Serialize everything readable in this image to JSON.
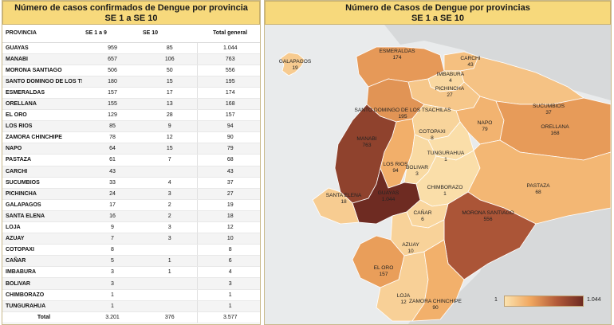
{
  "left_title": [
    "Número de casos confirmados de Dengue por provincia",
    "SE 1 a SE 10"
  ],
  "right_title": [
    "Número de Casos de Dengue por provincias",
    "SE 1 a SE 10"
  ],
  "table": {
    "headers": [
      "PROVINCIA",
      "SE 1 a 9",
      "SE 10",
      "Total general"
    ],
    "rows": [
      [
        "GUAYAS",
        "959",
        "85",
        "1.044"
      ],
      [
        "MANABI",
        "657",
        "106",
        "763"
      ],
      [
        "MORONA SANTIAGO",
        "506",
        "50",
        "556"
      ],
      [
        "SANTO DOMINGO DE LOS TS..",
        "180",
        "15",
        "195"
      ],
      [
        "ESMERALDAS",
        "157",
        "17",
        "174"
      ],
      [
        "ORELLANA",
        "155",
        "13",
        "168"
      ],
      [
        "EL ORO",
        "129",
        "28",
        "157"
      ],
      [
        "LOS RIOS",
        "85",
        "9",
        "94"
      ],
      [
        "ZAMORA CHINCHIPE",
        "78",
        "12",
        "90"
      ],
      [
        "NAPO",
        "64",
        "15",
        "79"
      ],
      [
        "PASTAZA",
        "61",
        "7",
        "68"
      ],
      [
        "CARCHI",
        "43",
        "",
        "43"
      ],
      [
        "SUCUMBIOS",
        "33",
        "4",
        "37"
      ],
      [
        "PICHINCHA",
        "24",
        "3",
        "27"
      ],
      [
        "GALAPAGOS",
        "17",
        "2",
        "19"
      ],
      [
        "SANTA ELENA",
        "16",
        "2",
        "18"
      ],
      [
        "LOJA",
        "9",
        "3",
        "12"
      ],
      [
        "AZUAY",
        "7",
        "3",
        "10"
      ],
      [
        "COTOPAXI",
        "8",
        "",
        "8"
      ],
      [
        " CAÑAR",
        "5",
        "1",
        "6"
      ],
      [
        "IMBABURA",
        "3",
        "1",
        "4"
      ],
      [
        "BOLIVAR",
        "3",
        "",
        "3"
      ],
      [
        "CHIMBORAZO",
        "1",
        "",
        "1"
      ],
      [
        "TUNGURAHUA",
        "1",
        "",
        "1"
      ]
    ],
    "total_row": [
      "Total",
      "3.201",
      "376",
      "3.577"
    ]
  },
  "chart_data": {
    "type": "table",
    "categories": [
      "GUAYAS",
      "MANABI",
      "MORONA SANTIAGO",
      "SANTO DOMINGO DE LOS TS..",
      "ESMERALDAS",
      "ORELLANA",
      "EL ORO",
      "LOS RIOS",
      "ZAMORA CHINCHIPE",
      "NAPO",
      "PASTAZA",
      "CARCHI",
      "SUCUMBIOS",
      "PICHINCHA",
      "GALAPAGOS",
      "SANTA ELENA",
      "LOJA",
      "AZUAY",
      "COTOPAXI",
      " CAÑAR",
      "IMBABURA",
      "BOLIVAR",
      "CHIMBORAZO",
      "TUNGURAHUA"
    ],
    "series": [
      {
        "name": "SE 1 a 9",
        "values": [
          959,
          657,
          506,
          180,
          157,
          155,
          129,
          85,
          78,
          64,
          61,
          43,
          33,
          24,
          17,
          16,
          9,
          7,
          8,
          5,
          3,
          3,
          1,
          1
        ]
      },
      {
        "name": "SE 10",
        "values": [
          85,
          106,
          50,
          15,
          17,
          13,
          28,
          9,
          12,
          15,
          7,
          null,
          4,
          3,
          2,
          2,
          3,
          3,
          null,
          1,
          1,
          null,
          null,
          null
        ]
      },
      {
        "name": "Total general",
        "values": [
          1044,
          763,
          556,
          195,
          174,
          168,
          157,
          94,
          90,
          79,
          68,
          43,
          37,
          27,
          19,
          18,
          12,
          10,
          8,
          6,
          4,
          3,
          1,
          1
        ]
      }
    ]
  },
  "map": {
    "provinces": [
      {
        "name": "GALAPAGOS",
        "value": "19",
        "total": 19
      },
      {
        "name": "ESMERALDAS",
        "value": "174",
        "total": 174
      },
      {
        "name": "CARCHI",
        "value": "43",
        "total": 43
      },
      {
        "name": "IMBABURA",
        "value": "4",
        "total": 4
      },
      {
        "name": "SUCUMBIOS",
        "value": "37",
        "total": 37
      },
      {
        "name": "PICHINCHA",
        "value": "27",
        "total": 27
      },
      {
        "name": "SANTO DOMINGO DE LOS TSACHILAS",
        "value": "195",
        "total": 195
      },
      {
        "name": "NAPO",
        "value": "79",
        "total": 79
      },
      {
        "name": "ORELLANA",
        "value": "168",
        "total": 168
      },
      {
        "name": "MANABI",
        "value": "763",
        "total": 763
      },
      {
        "name": "COTOPAXI",
        "value": "8",
        "total": 8
      },
      {
        "name": "TUNGURAHUA",
        "value": "1",
        "total": 1
      },
      {
        "name": "LOS RIOS",
        "value": "94",
        "total": 94
      },
      {
        "name": "BOLIVAR",
        "value": "3",
        "total": 3
      },
      {
        "name": "CHIMBORAZO",
        "value": "1",
        "total": 1
      },
      {
        "name": "PASTAZA",
        "value": "68",
        "total": 68
      },
      {
        "name": "GUAYAS",
        "value": "1.044",
        "total": 1044
      },
      {
        "name": "SANTA ELENA",
        "value": "18",
        "total": 18
      },
      {
        "name": "CAÑAR",
        "value": "6",
        "total": 6
      },
      {
        "name": "MORONA SANTIAGO",
        "value": "556",
        "total": 556
      },
      {
        "name": "AZUAY",
        "value": "10",
        "total": 10
      },
      {
        "name": "EL ORO",
        "value": "157",
        "total": 157
      },
      {
        "name": "LOJA",
        "value": "12",
        "total": 12
      },
      {
        "name": "ZAMORA CHINCHIPE",
        "value": "90",
        "total": 90
      }
    ],
    "legend_min": "1",
    "legend_max": "1.044",
    "colors": {
      "low": "#fbe3b0",
      "mid": "#f0a65e",
      "high": "#b25a39",
      "top": "#6e2b22",
      "land": "#d7d9da",
      "sea": "#e9ebec"
    }
  }
}
